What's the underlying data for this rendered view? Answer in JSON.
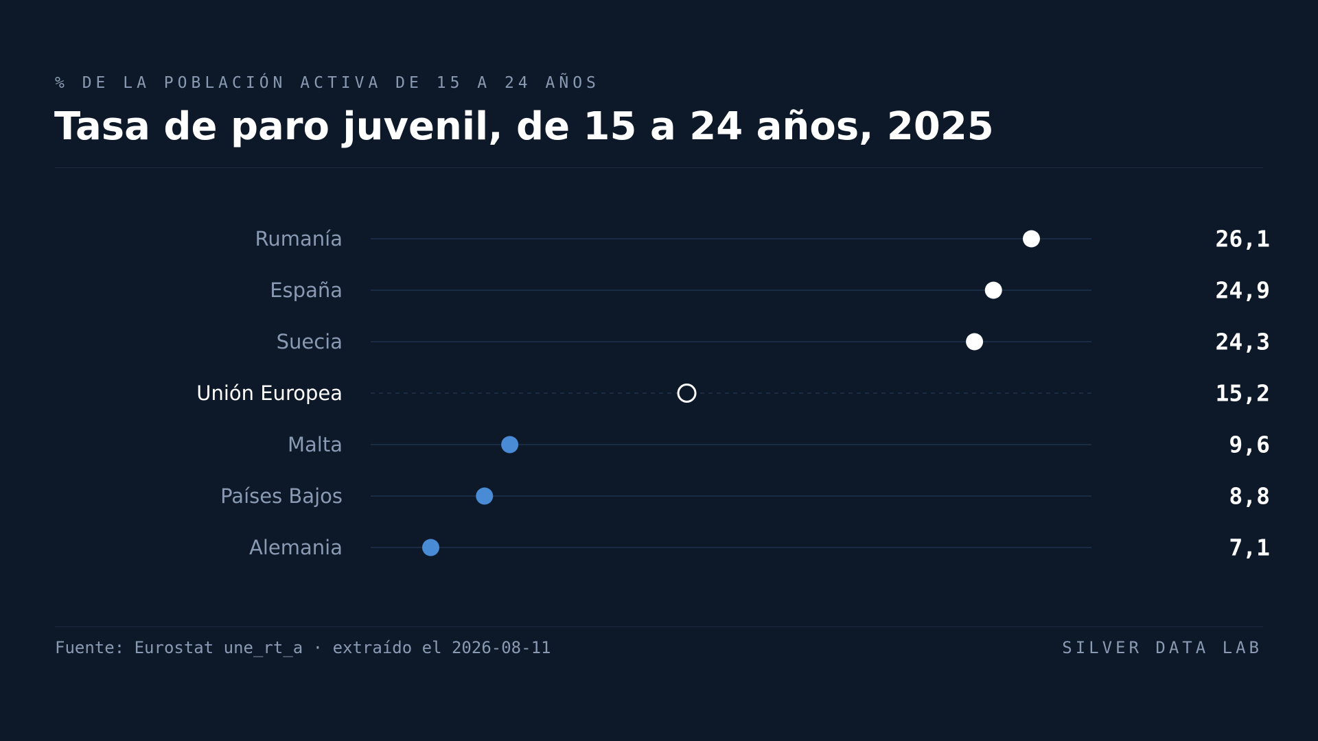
{
  "header": {
    "kicker": "% DE LA POBLACIÓN ACTIVA DE 15 A 24 AÑOS",
    "title": "Tasa de paro juvenil, de 15 a 24 años, 2025"
  },
  "footer": {
    "source": "Fuente: Eurostat une_rt_a · extraído el 2026-08-11",
    "brand": "SILVER DATA LAB"
  },
  "colors": {
    "background": "#0d1929",
    "high_marker": "#ffffff",
    "low_marker": "#4a8bd6",
    "reference_marker": "#ffffff",
    "track": "#1f324c",
    "label": "#8a9ab3",
    "reference_label": "#ffffff",
    "value": "#ffffff"
  },
  "chart_data": {
    "type": "dot",
    "title": "Tasa de paro juvenil, de 15 a 24 años, 2025",
    "subtitle": "% DE LA POBLACIÓN ACTIVA DE 15 A 24 AÑOS",
    "categories": [
      "Rumanía",
      "España",
      "Suecia",
      "Unión Europea",
      "Malta",
      "Países Bajos",
      "Alemania"
    ],
    "values": [
      26.1,
      24.9,
      24.3,
      15.2,
      9.6,
      8.8,
      7.1
    ],
    "value_labels": [
      "26,1",
      "24,9",
      "24,3",
      "15,2",
      "9,6",
      "8,8",
      "7,1"
    ],
    "reference": "Unión Europea",
    "xlim": [
      5.2,
      28.0
    ],
    "grid": false,
    "legend": "none"
  }
}
